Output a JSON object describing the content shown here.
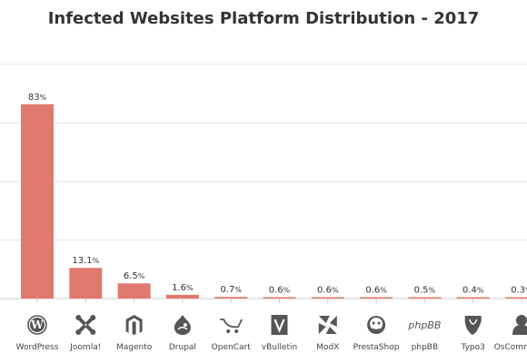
{
  "chart_data": {
    "type": "bar",
    "title": "Infected Websites Platform Distribution - 2017",
    "xlabel": "",
    "ylabel": "",
    "ylim": [
      0,
      100
    ],
    "grid": true,
    "legend": "none",
    "bar_color": "#e07a6e",
    "categories": [
      "WordPress",
      "Joomla!",
      "Magento",
      "Drupal",
      "OpenCart",
      "vBulletin",
      "ModX",
      "PrestaShop",
      "phpBB",
      "Typo3",
      "OsCommerce"
    ],
    "values": [
      83,
      13.1,
      6.5,
      1.6,
      0.7,
      0.6,
      0.6,
      0.6,
      0.5,
      0.4,
      0.3
    ],
    "data_labels": [
      "83",
      "13.1",
      "6.5",
      "1.6",
      "0.7",
      "0.6",
      "0.6",
      "0.6",
      "0.5",
      "0.4",
      "0.3"
    ],
    "data_label_suffix": "%",
    "icons": [
      "wordpress-icon",
      "joomla-icon",
      "magento-icon",
      "drupal-icon",
      "opencart-icon",
      "vbulletin-icon",
      "modx-icon",
      "prestashop-icon",
      "phpbb-icon",
      "typo3-icon",
      "oscommerce-icon"
    ]
  }
}
